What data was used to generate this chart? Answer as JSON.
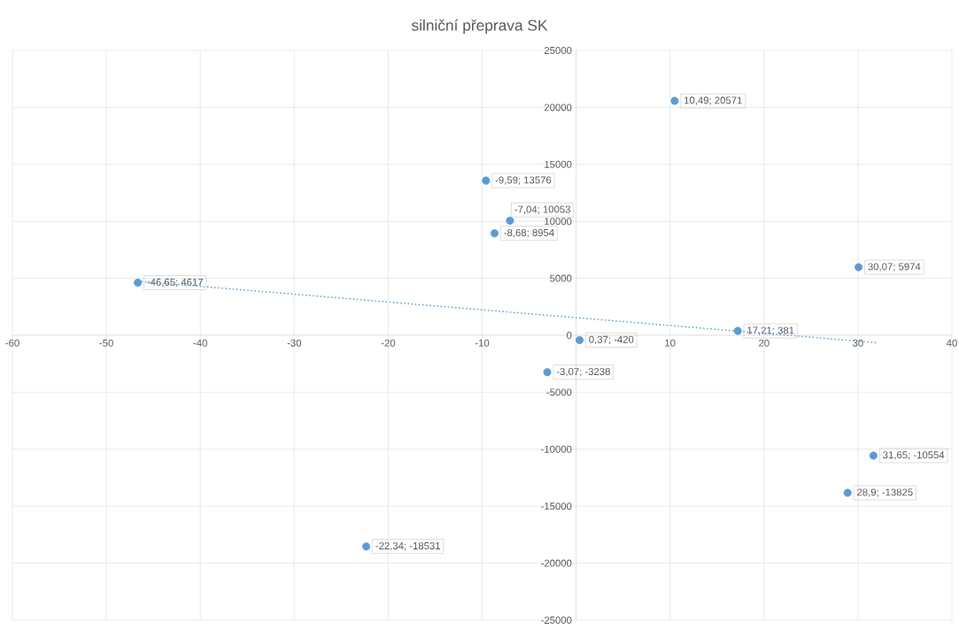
{
  "chart_data": {
    "type": "scatter",
    "title": "silniční přeprava SK",
    "xlim": [
      -60,
      40
    ],
    "xticks": [
      -60,
      -50,
      -40,
      -30,
      -20,
      -10,
      {
        "value": 0,
        "label": null
      },
      10,
      20,
      30,
      40
    ],
    "ylim": [
      -25000,
      25000
    ],
    "yticks": [
      -25000,
      -20000,
      -15000,
      -10000,
      -5000,
      0,
      5000,
      10000,
      15000,
      20000,
      25000
    ],
    "grid": true,
    "series": [
      {
        "color": "#5b9bd5",
        "marker": "circle",
        "x": [
          10.49,
          -9.59,
          -7.04,
          -8.68,
          30.07,
          -46.65,
          17.21,
          0.37,
          -3.07,
          31.65,
          28.9,
          -22.34
        ],
        "values": [
          20571,
          13576,
          10053,
          8954,
          5974,
          4617,
          381,
          -420,
          -3238,
          -10554,
          -13825,
          -18531
        ],
        "value_labels": [
          "10,49; 20571",
          "-9,59; 13576",
          "-7,04; 10053",
          "-8,68; 8954",
          "30,07; 5974",
          "-46,65; 4617",
          "17,21; 381",
          "0,37; -420",
          "-3,07; -3238",
          "31,65; -10554",
          "28,9; -13825",
          "-22,34; -18531"
        ]
      },
      {
        "type": "line",
        "color": "#5b9bd5",
        "marker": "none",
        "line_style": "dotted",
        "x": [
          -46.65,
          32
        ],
        "values": [
          4750,
          -650
        ]
      }
    ]
  }
}
